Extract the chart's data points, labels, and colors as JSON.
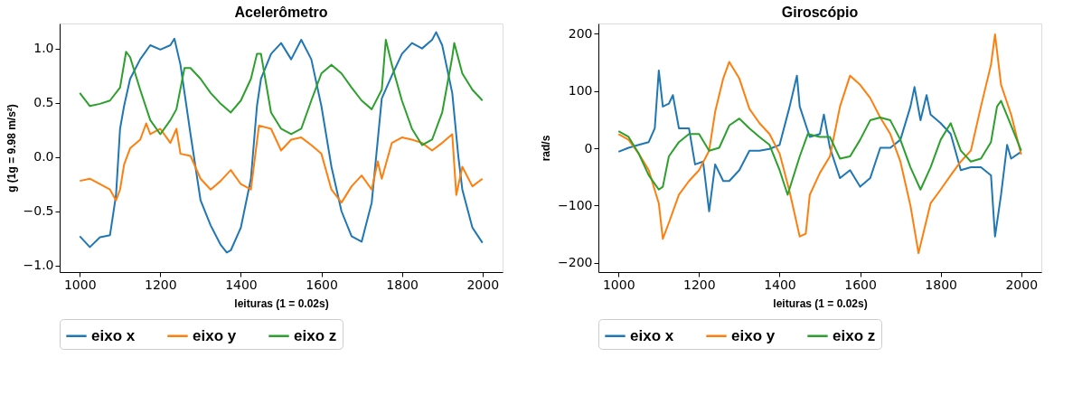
{
  "chart_data": [
    {
      "type": "line",
      "title": "Acelerômetro",
      "xlabel": "leituras (1 = 0.02s)",
      "ylabel": "g (1g = 9.98 m/s²)",
      "xlim": [
        950,
        2050
      ],
      "xticks": [
        1000,
        1200,
        1400,
        1600,
        1800,
        2000
      ],
      "ylim": [
        -1.06,
        1.23
      ],
      "yticks": [
        {
          "value": -1,
          "label": "−1.0"
        },
        {
          "value": -0.5,
          "label": "−0.5"
        },
        {
          "value": 0,
          "label": "0.0"
        },
        {
          "value": 0.5,
          "label": "0.5"
        },
        {
          "value": 1,
          "label": "1.0"
        }
      ],
      "grid": false,
      "legend": "bottom",
      "line_style": "solid",
      "marker": "none",
      "series": [
        {
          "name": "eixo x",
          "color": "#1f77b4",
          "x": [
            1000,
            1025,
            1050,
            1075,
            1090,
            1100,
            1110,
            1125,
            1150,
            1175,
            1200,
            1225,
            1235,
            1250,
            1275,
            1300,
            1325,
            1350,
            1365,
            1375,
            1400,
            1425,
            1440,
            1450,
            1475,
            1500,
            1525,
            1550,
            1575,
            1600,
            1625,
            1650,
            1675,
            1700,
            1725,
            1750,
            1775,
            1800,
            1825,
            1850,
            1875,
            1885,
            1900,
            1925,
            1940,
            1950,
            1975,
            2000
          ],
          "values": [
            -0.73,
            -0.83,
            -0.74,
            -0.72,
            -0.35,
            0.26,
            0.47,
            0.72,
            0.9,
            1.03,
            0.99,
            1.03,
            1.09,
            0.85,
            0.21,
            -0.4,
            -0.63,
            -0.81,
            -0.88,
            -0.86,
            -0.65,
            -0.2,
            0.47,
            0.72,
            0.95,
            1.05,
            0.9,
            1.08,
            0.9,
            0.47,
            -0.09,
            -0.5,
            -0.73,
            -0.78,
            -0.42,
            0.54,
            0.75,
            0.95,
            1.05,
            1.0,
            1.08,
            1.15,
            1.03,
            0.59,
            0.01,
            -0.3,
            -0.65,
            -0.79
          ]
        },
        {
          "name": "eixo y",
          "color": "#ff7f0e",
          "x": [
            1000,
            1025,
            1050,
            1075,
            1090,
            1100,
            1110,
            1125,
            1150,
            1165,
            1175,
            1200,
            1225,
            1240,
            1250,
            1275,
            1300,
            1325,
            1350,
            1375,
            1400,
            1425,
            1445,
            1475,
            1500,
            1525,
            1550,
            1575,
            1600,
            1625,
            1650,
            1675,
            1700,
            1725,
            1740,
            1750,
            1775,
            1800,
            1825,
            1850,
            1875,
            1900,
            1925,
            1935,
            1950,
            1975,
            2000
          ],
          "values": [
            -0.22,
            -0.2,
            -0.25,
            -0.3,
            -0.4,
            -0.3,
            -0.07,
            0.08,
            0.16,
            0.31,
            0.21,
            0.26,
            0.13,
            0.26,
            0.03,
            0.01,
            -0.2,
            -0.3,
            -0.22,
            -0.12,
            -0.25,
            -0.3,
            0.29,
            0.26,
            0.06,
            0.16,
            0.18,
            0.11,
            0.03,
            -0.3,
            -0.42,
            -0.27,
            -0.17,
            -0.3,
            -0.04,
            -0.2,
            0.13,
            0.18,
            0.16,
            0.13,
            0.06,
            0.13,
            0.21,
            -0.35,
            -0.09,
            -0.27,
            -0.2
          ]
        },
        {
          "name": "eixo z",
          "color": "#2ca02c",
          "x": [
            1000,
            1025,
            1050,
            1075,
            1100,
            1115,
            1125,
            1150,
            1175,
            1200,
            1225,
            1240,
            1260,
            1275,
            1300,
            1325,
            1350,
            1375,
            1400,
            1425,
            1440,
            1450,
            1475,
            1500,
            1525,
            1550,
            1575,
            1600,
            1625,
            1650,
            1675,
            1700,
            1725,
            1750,
            1760,
            1775,
            1800,
            1825,
            1850,
            1875,
            1900,
            1925,
            1930,
            1950,
            1975,
            2000
          ],
          "values": [
            0.59,
            0.47,
            0.49,
            0.52,
            0.64,
            0.97,
            0.92,
            0.62,
            0.34,
            0.21,
            0.34,
            0.44,
            0.82,
            0.82,
            0.72,
            0.59,
            0.49,
            0.41,
            0.52,
            0.72,
            0.95,
            0.95,
            0.41,
            0.26,
            0.21,
            0.26,
            0.52,
            0.77,
            0.85,
            0.77,
            0.64,
            0.52,
            0.44,
            0.62,
            1.08,
            0.85,
            0.52,
            0.26,
            0.11,
            0.16,
            0.41,
            0.92,
            1.05,
            0.77,
            0.62,
            0.52
          ]
        }
      ]
    },
    {
      "type": "line",
      "title": "Giroscópio",
      "xlabel": "leituras (1 = 0.02s)",
      "ylabel": "rad/s",
      "xlim": [
        950,
        2050
      ],
      "xticks": [
        1000,
        1200,
        1400,
        1600,
        1800,
        2000
      ],
      "ylim": [
        -216,
        218
      ],
      "yticks": [
        {
          "value": -200,
          "label": "−200"
        },
        {
          "value": -100,
          "label": "−100"
        },
        0,
        100,
        200
      ],
      "grid": false,
      "legend": "bottom",
      "line_style": "solid",
      "marker": "none",
      "series": [
        {
          "name": "eixo x",
          "color": "#1f77b4",
          "x": [
            1000,
            1025,
            1050,
            1075,
            1090,
            1100,
            1110,
            1125,
            1135,
            1150,
            1175,
            1190,
            1210,
            1225,
            1240,
            1260,
            1275,
            1300,
            1325,
            1350,
            1375,
            1400,
            1425,
            1443,
            1450,
            1475,
            1500,
            1510,
            1525,
            1550,
            1575,
            1600,
            1625,
            1650,
            1675,
            1700,
            1725,
            1735,
            1750,
            1765,
            1775,
            1800,
            1825,
            1850,
            1875,
            1900,
            1925,
            1935,
            1950,
            1965,
            1975,
            2000
          ],
          "values": [
            -6,
            1,
            6,
            11,
            35,
            136,
            73,
            78,
            93,
            35,
            35,
            -28,
            -23,
            -110,
            -28,
            -57,
            -57,
            -38,
            -4,
            -4,
            -1,
            6,
            73,
            127,
            73,
            20,
            25,
            59,
            1,
            -52,
            -38,
            -67,
            -52,
            1,
            1,
            15,
            73,
            107,
            49,
            93,
            59,
            44,
            25,
            -38,
            -33,
            -33,
            -47,
            -154,
            -81,
            6,
            -18,
            -6
          ]
        },
        {
          "name": "eixo y",
          "color": "#ff7f0e",
          "x": [
            1000,
            1025,
            1050,
            1075,
            1100,
            1110,
            1125,
            1150,
            1175,
            1200,
            1225,
            1240,
            1260,
            1275,
            1300,
            1325,
            1350,
            1375,
            1400,
            1425,
            1450,
            1465,
            1475,
            1500,
            1525,
            1550,
            1575,
            1600,
            1625,
            1650,
            1675,
            1700,
            1725,
            1745,
            1775,
            1800,
            1825,
            1850,
            1875,
            1900,
            1925,
            1935,
            1950,
            1975,
            2000
          ],
          "values": [
            25,
            15,
            -9,
            -38,
            -96,
            -158,
            -130,
            -81,
            -57,
            -38,
            -4,
            64,
            122,
            151,
            122,
            69,
            44,
            25,
            -9,
            -76,
            -154,
            -149,
            -81,
            -43,
            -14,
            73,
            127,
            111,
            88,
            54,
            25,
            -23,
            -100,
            -183,
            -96,
            -72,
            -47,
            -23,
            -4,
            73,
            146,
            199,
            111,
            59,
            -11
          ]
        },
        {
          "name": "eixo z",
          "color": "#2ca02c",
          "x": [
            1000,
            1025,
            1050,
            1075,
            1100,
            1110,
            1125,
            1150,
            1175,
            1200,
            1225,
            1250,
            1275,
            1300,
            1325,
            1350,
            1375,
            1400,
            1420,
            1450,
            1470,
            1500,
            1525,
            1550,
            1575,
            1600,
            1625,
            1650,
            1675,
            1700,
            1725,
            1750,
            1775,
            1800,
            1825,
            1850,
            1875,
            1900,
            1925,
            1940,
            1950,
            1975,
            2000
          ],
          "values": [
            30,
            20,
            -9,
            -47,
            -72,
            -67,
            -14,
            11,
            25,
            25,
            -4,
            1,
            40,
            52,
            35,
            20,
            6,
            -38,
            -81,
            -14,
            25,
            20,
            20,
            -18,
            -14,
            15,
            49,
            54,
            49,
            15,
            -33,
            -72,
            -33,
            15,
            44,
            -4,
            -23,
            -18,
            11,
            73,
            83,
            40,
            -4
          ]
        }
      ]
    }
  ]
}
